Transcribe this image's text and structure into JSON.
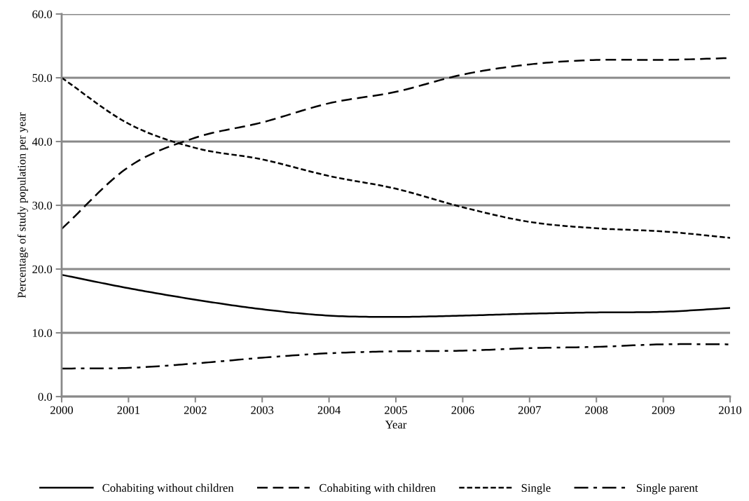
{
  "chart_data": {
    "type": "line",
    "xlabel": "Year",
    "ylabel": "Percentage of study population per year",
    "x": [
      2000,
      2001,
      2002,
      2003,
      2004,
      2005,
      2006,
      2007,
      2008,
      2009,
      2010
    ],
    "series": [
      {
        "name": "Cohabiting without children",
        "color": "#000000",
        "line_style": "solid",
        "values": [
          19.1,
          17.0,
          15.2,
          13.7,
          12.7,
          12.5,
          12.7,
          13.0,
          13.2,
          13.3,
          13.9
        ]
      },
      {
        "name": "Cohabiting with children",
        "color": "#000000",
        "line_style": "dashed",
        "values": [
          26.3,
          36.0,
          40.6,
          43.0,
          46.0,
          47.8,
          50.5,
          52.1,
          52.8,
          52.8,
          53.1
        ]
      },
      {
        "name": "Single",
        "color": "#000000",
        "line_style": "dotted",
        "values": [
          50.0,
          42.8,
          39.0,
          37.2,
          34.6,
          32.6,
          29.7,
          27.4,
          26.4,
          25.9,
          24.9
        ]
      },
      {
        "name": "Single parent",
        "color": "#000000",
        "line_style": "dashdot",
        "values": [
          4.4,
          4.5,
          5.2,
          6.1,
          6.8,
          7.1,
          7.2,
          7.6,
          7.8,
          8.2,
          8.2
        ]
      }
    ],
    "xlim": [
      2000,
      2010
    ],
    "xticks": [
      2000,
      2001,
      2002,
      2003,
      2004,
      2005,
      2006,
      2007,
      2008,
      2009,
      2010
    ],
    "ylim": [
      0,
      60
    ],
    "yticks": [
      {
        "value": 0,
        "label": "0.0"
      },
      {
        "value": 10,
        "label": "10.0"
      },
      {
        "value": 20,
        "label": "20.0"
      },
      {
        "value": 30,
        "label": "30.0"
      },
      {
        "value": 40,
        "label": "40.0"
      },
      {
        "value": 50,
        "label": "50.0"
      },
      {
        "value": 60,
        "label": "60.0"
      }
    ],
    "grid": "y",
    "legend": "bottom",
    "marker": "none"
  }
}
